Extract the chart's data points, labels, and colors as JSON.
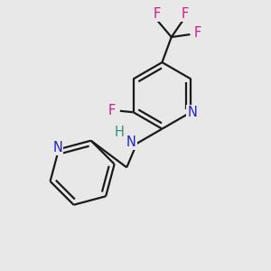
{
  "background_color": "#e8e8e8",
  "bond_color": "#1a1a1a",
  "N_color": "#2222cc",
  "H_color": "#3a8a7a",
  "F_color": "#cc1a88",
  "line_width": 1.6,
  "figsize": [
    3.0,
    3.0
  ],
  "dpi": 100,
  "xlim": [
    0,
    10
  ],
  "ylim": [
    0,
    10
  ],
  "font_size": 10.5
}
